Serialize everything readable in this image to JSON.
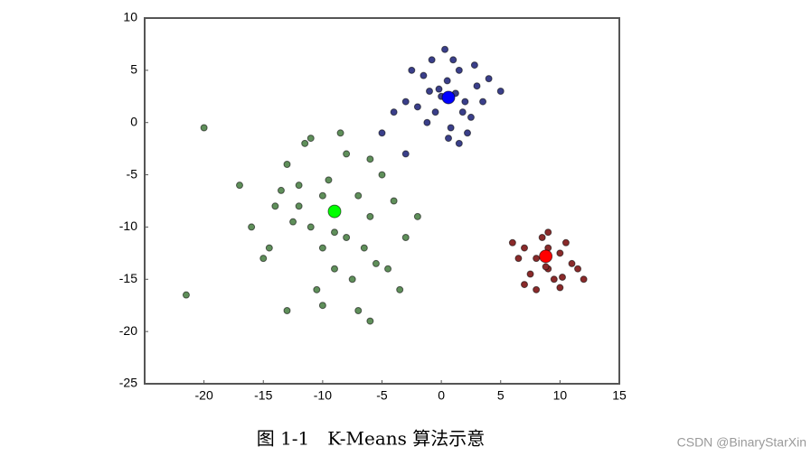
{
  "chart_data": {
    "type": "scatter",
    "caption": "图 1-1　K-Means 算法示意",
    "watermark": "CSDN @BinaryStarXin",
    "xlim": [
      -25,
      15
    ],
    "xticks": [
      -20,
      -15,
      -10,
      -5,
      0,
      5,
      10,
      15
    ],
    "ylim": [
      -25,
      10
    ],
    "yticks": [
      -25,
      -20,
      -15,
      -10,
      -5,
      0,
      5,
      10
    ],
    "grid": false,
    "series": [
      {
        "color": "#5f8f5a",
        "marker_size": 3.5,
        "x": [
          -12,
          -8,
          -6,
          -10,
          -14,
          -5,
          -9,
          -11,
          -7,
          -13,
          -3,
          -15,
          -8.5,
          -10.5,
          -6.5,
          -12.5,
          -4,
          -9.5,
          -16,
          -7.5,
          -11.5,
          -5.5,
          -13.5,
          -8,
          -2,
          -10,
          -6,
          -14.5,
          -9,
          -12,
          -17,
          -4.5,
          -7,
          -11,
          -20,
          -21.5,
          -13,
          -6,
          -3.5,
          -10
        ],
        "y": [
          -6,
          -3,
          -9,
          -12,
          -8,
          -5,
          -14,
          -10,
          -7,
          -4,
          -11,
          -13,
          -1,
          -16,
          -12,
          -9.5,
          -7.5,
          -5.5,
          -10,
          -15,
          -2,
          -13.5,
          -6.5,
          -11,
          -9,
          -17.5,
          -3.5,
          -12,
          -10.5,
          -8,
          -6,
          -14,
          -18,
          -1.5,
          -0.5,
          -16.5,
          -18,
          -19,
          -16,
          -7
        ]
      },
      {
        "color": "#3a3f8a",
        "marker_size": 3.5,
        "x": [
          -1,
          0.5,
          2,
          1.5,
          -0.5,
          3,
          0,
          -2,
          2.5,
          1,
          -1.5,
          3.5,
          0.8,
          -0.2,
          1.8,
          4,
          -3,
          2.2,
          0.3,
          -1.2,
          1.2,
          -4,
          2.8,
          0.6,
          -2.5,
          5,
          1.5,
          -5,
          -3,
          -0.8
        ],
        "y": [
          3,
          4,
          2,
          5,
          1,
          3.5,
          2.5,
          1.5,
          0.5,
          6,
          4.5,
          2,
          -0.5,
          3.2,
          1,
          4.2,
          2,
          -1,
          7,
          0,
          2.8,
          1,
          5.5,
          -1.5,
          5,
          3,
          -2,
          -1,
          -3,
          6
        ]
      },
      {
        "color": "#8a2a2a",
        "marker_size": 3.5,
        "x": [
          7,
          8,
          9,
          10,
          11,
          8.5,
          9.5,
          7.5,
          10.5,
          6.5,
          9,
          8,
          11.5,
          7,
          10,
          12,
          6,
          9,
          8.8,
          10.2
        ],
        "y": [
          -12,
          -13,
          -14,
          -12.5,
          -13.5,
          -11,
          -15,
          -14.5,
          -11.5,
          -13,
          -12,
          -16,
          -14,
          -15.5,
          -15.8,
          -15,
          -11.5,
          -10.5,
          -13.8,
          -14.8
        ]
      },
      {
        "color": "#00ff00",
        "marker_size": 7,
        "x": [
          -9
        ],
        "y": [
          -8.5
        ]
      },
      {
        "color": "#0000ff",
        "marker_size": 7,
        "x": [
          0.6
        ],
        "y": [
          2.4
        ]
      },
      {
        "color": "#ff0000",
        "marker_size": 7,
        "x": [
          8.8
        ],
        "y": [
          -12.8
        ]
      }
    ]
  }
}
